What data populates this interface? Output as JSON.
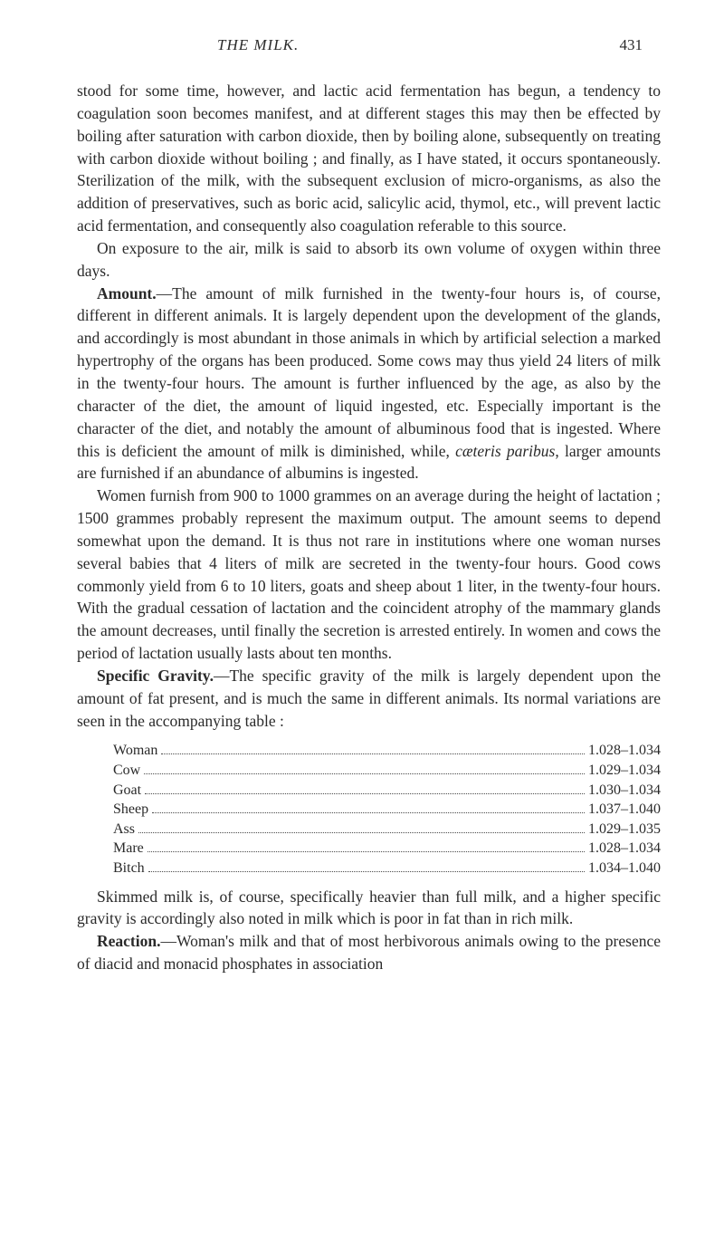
{
  "header": {
    "running_title": "THE MILK.",
    "page_number": "431"
  },
  "paragraphs": {
    "p1": "stood for some time, however, and lactic acid fermentation has begun, a tendency to coagulation soon becomes manifest, and at different stages this may then be effected by boiling after saturation with carbon dioxide, then by boiling alone, subsequently on treating with carbon dioxide without boiling ; and finally, as I have stated, it occurs spontaneously. Sterilization of the milk, with the subsequent exclusion of micro-organisms, as also the addition of preservatives, such as boric acid, salicylic acid, thymol, etc., will prevent lactic acid fermentation, and consequently also coagulation referable to this source.",
    "p2": "On exposure to the air, milk is said to absorb its own volume of oxygen within three days.",
    "p3_bold": "Amount.",
    "p3_rest": "—The amount of milk furnished in the twenty-four hours is, of course, different in different animals. It is largely dependent upon the development of the glands, and accordingly is most abundant in those animals in which by artificial selection a marked hypertrophy of the organs has been produced. Some cows may thus yield 24 liters of milk in the twenty-four hours. The amount is further influenced by the age, as also by the character of the diet, the amount of liquid ingested, etc. Especially important is the character of the diet, and notably the amount of albuminous food that is ingested. Where this is deficient the amount of milk is diminished, while, ",
    "p3_italic": "cæteris paribus",
    "p3_end": ", larger amounts are furnished if an abundance of albumins is ingested.",
    "p4": "Women furnish from 900 to 1000 grammes on an average during the height of lactation ; 1500 grammes probably represent the maximum output. The amount seems to depend somewhat upon the demand. It is thus not rare in institutions where one woman nurses several babies that 4 liters of milk are secreted in the twenty-four hours. Good cows commonly yield from 6 to 10 liters, goats and sheep about 1 liter, in the twenty-four hours. With the gradual cessation of lactation and the coincident atrophy of the mammary glands the amount decreases, until finally the secretion is arrested entirely. In women and cows the period of lactation usually lasts about ten months.",
    "p5_bold": "Specific Gravity.",
    "p5_rest": "—The specific gravity of the milk is largely dependent upon the amount of fat present, and is much the same in different animals. Its normal variations are seen in the accompanying table :",
    "p6": "Skimmed milk is, of course, specifically heavier than full milk, and a higher specific gravity is accordingly also noted in milk which is poor in fat than in rich milk.",
    "p7_bold": "Reaction.",
    "p7_rest": "—Woman's milk and that of most herbivorous animals owing to the presence of diacid and monacid phosphates in association"
  },
  "gravity_table": {
    "rows": [
      {
        "label": "Woman",
        "value": "1.028–1.034"
      },
      {
        "label": "Cow",
        "value": "1.029–1.034"
      },
      {
        "label": "Goat",
        "value": "1.030–1.034"
      },
      {
        "label": "Sheep",
        "value": "1.037–1.040"
      },
      {
        "label": "Ass",
        "value": "1.029–1.035"
      },
      {
        "label": "Mare",
        "value": "1.028–1.034"
      },
      {
        "label": "Bitch",
        "value": "1.034–1.040"
      }
    ]
  }
}
